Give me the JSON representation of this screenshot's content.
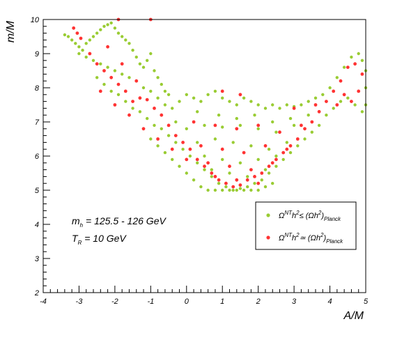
{
  "chart_data": {
    "type": "scatter",
    "xlabel": "A/M",
    "ylabel": "m/M",
    "xlim": [
      -4,
      5
    ],
    "ylim": [
      2,
      10
    ],
    "x_ticks": [
      -4,
      -3,
      -2,
      -1,
      0,
      1,
      2,
      3,
      4,
      5
    ],
    "y_ticks": [
      2,
      3,
      4,
      5,
      6,
      7,
      8,
      9,
      10
    ],
    "grid": false,
    "legend_position": "right-middle",
    "annotations": [
      {
        "id": "mh",
        "base": "m",
        "sub": "h",
        "text": " = 125.5 - 126 GeV"
      },
      {
        "id": "tr",
        "base": "T",
        "sub": "R",
        "text": " = 10 GeV"
      }
    ],
    "series": [
      {
        "id": "green",
        "legend": {
          "a": "Ω",
          "b": "NT",
          "c": "h",
          "d": "2",
          "e": "≤ (Ωh",
          "f": "2",
          "g": ")",
          "h": "Planck"
        },
        "color": "#99cc33",
        "points": [
          [
            -3.4,
            9.55
          ],
          [
            -3.3,
            9.5
          ],
          [
            -3.2,
            9.4
          ],
          [
            -3.1,
            9.3
          ],
          [
            -3.0,
            9.2
          ],
          [
            -2.9,
            9.1
          ],
          [
            -2.8,
            9.3
          ],
          [
            -2.7,
            9.4
          ],
          [
            -2.6,
            9.5
          ],
          [
            -2.5,
            9.6
          ],
          [
            -2.4,
            9.7
          ],
          [
            -2.3,
            9.8
          ],
          [
            -2.2,
            9.85
          ],
          [
            -2.1,
            9.9
          ],
          [
            -2.0,
            9.75
          ],
          [
            -1.9,
            9.6
          ],
          [
            -1.8,
            9.5
          ],
          [
            -1.7,
            9.4
          ],
          [
            -1.6,
            9.3
          ],
          [
            -1.5,
            9.1
          ],
          [
            -1.4,
            8.9
          ],
          [
            -1.3,
            8.7
          ],
          [
            -1.2,
            8.6
          ],
          [
            -1.1,
            8.8
          ],
          [
            -1.0,
            9.0
          ],
          [
            -0.9,
            8.5
          ],
          [
            -0.8,
            8.3
          ],
          [
            -0.7,
            8.1
          ],
          [
            -0.6,
            7.9
          ],
          [
            -0.5,
            7.8
          ],
          [
            -3.0,
            9.0
          ],
          [
            -2.8,
            8.9
          ],
          [
            -2.6,
            8.8
          ],
          [
            -2.4,
            8.7
          ],
          [
            -2.2,
            8.6
          ],
          [
            -2.0,
            8.5
          ],
          [
            -1.8,
            8.4
          ],
          [
            -1.6,
            8.3
          ],
          [
            -1.4,
            8.2
          ],
          [
            -1.2,
            8.0
          ],
          [
            -1.0,
            7.9
          ],
          [
            -0.8,
            7.7
          ],
          [
            -0.6,
            7.5
          ],
          [
            -0.4,
            7.4
          ],
          [
            -0.2,
            7.6
          ],
          [
            0.0,
            7.8
          ],
          [
            0.2,
            7.7
          ],
          [
            0.4,
            7.6
          ],
          [
            0.6,
            7.8
          ],
          [
            0.8,
            7.9
          ],
          [
            1.0,
            7.7
          ],
          [
            1.2,
            7.6
          ],
          [
            1.4,
            7.5
          ],
          [
            1.6,
            7.7
          ],
          [
            1.8,
            7.6
          ],
          [
            2.0,
            7.5
          ],
          [
            2.2,
            7.4
          ],
          [
            2.4,
            7.5
          ],
          [
            2.6,
            7.4
          ],
          [
            2.8,
            7.5
          ],
          [
            3.0,
            7.45
          ],
          [
            3.2,
            7.5
          ],
          [
            3.4,
            7.6
          ],
          [
            3.6,
            7.7
          ],
          [
            3.8,
            7.8
          ],
          [
            4.0,
            8.0
          ],
          [
            4.2,
            8.3
          ],
          [
            4.4,
            8.6
          ],
          [
            4.6,
            8.9
          ],
          [
            4.8,
            9.0
          ],
          [
            4.9,
            8.8
          ],
          [
            5.0,
            8.5
          ],
          [
            5.0,
            8.0
          ],
          [
            5.0,
            7.5
          ],
          [
            4.9,
            7.3
          ],
          [
            4.7,
            7.5
          ],
          [
            4.5,
            7.7
          ],
          [
            4.3,
            7.6
          ],
          [
            4.1,
            7.4
          ],
          [
            3.9,
            7.2
          ],
          [
            -2.5,
            8.3
          ],
          [
            -2.3,
            8.1
          ],
          [
            -2.1,
            7.9
          ],
          [
            -1.9,
            7.8
          ],
          [
            -1.7,
            7.6
          ],
          [
            -1.5,
            7.4
          ],
          [
            -1.3,
            7.3
          ],
          [
            -1.1,
            7.1
          ],
          [
            -0.9,
            6.9
          ],
          [
            -0.7,
            6.8
          ],
          [
            -0.5,
            6.6
          ],
          [
            -0.3,
            6.4
          ],
          [
            -0.1,
            6.2
          ],
          [
            0.1,
            6.0
          ],
          [
            0.3,
            5.8
          ],
          [
            0.5,
            5.6
          ],
          [
            0.7,
            5.4
          ],
          [
            0.9,
            5.2
          ],
          [
            1.1,
            5.1
          ],
          [
            1.3,
            5.0
          ],
          [
            1.5,
            5.05
          ],
          [
            1.7,
            5.1
          ],
          [
            1.9,
            5.2
          ],
          [
            2.1,
            5.3
          ],
          [
            2.3,
            5.5
          ],
          [
            2.5,
            5.7
          ],
          [
            2.7,
            5.9
          ],
          [
            2.9,
            6.1
          ],
          [
            3.1,
            6.3
          ],
          [
            3.3,
            6.5
          ],
          [
            3.5,
            6.7
          ],
          [
            3.7,
            6.9
          ],
          [
            -1.0,
            6.5
          ],
          [
            -0.8,
            6.3
          ],
          [
            -0.6,
            6.1
          ],
          [
            -0.4,
            5.9
          ],
          [
            -0.2,
            5.7
          ],
          [
            0.0,
            5.5
          ],
          [
            0.2,
            5.3
          ],
          [
            0.4,
            5.1
          ],
          [
            0.6,
            5.0
          ],
          [
            0.8,
            5.0
          ],
          [
            1.0,
            5.0
          ],
          [
            1.2,
            5.0
          ],
          [
            1.4,
            5.0
          ],
          [
            1.6,
            5.0
          ],
          [
            1.8,
            5.0
          ],
          [
            2.0,
            5.0
          ],
          [
            2.2,
            5.1
          ],
          [
            2.4,
            5.2
          ],
          [
            0.0,
            6.8
          ],
          [
            0.5,
            6.9
          ],
          [
            1.0,
            6.85
          ],
          [
            1.5,
            6.9
          ],
          [
            2.0,
            6.8
          ],
          [
            2.5,
            6.7
          ],
          [
            3.0,
            6.9
          ],
          [
            0.3,
            6.4
          ],
          [
            0.8,
            6.5
          ],
          [
            1.3,
            6.4
          ],
          [
            1.8,
            6.3
          ],
          [
            2.3,
            6.2
          ],
          [
            2.8,
            6.4
          ],
          [
            0.5,
            6.0
          ],
          [
            1.0,
            5.9
          ],
          [
            1.5,
            5.8
          ],
          [
            2.0,
            5.9
          ],
          [
            2.5,
            6.0
          ],
          [
            0.7,
            5.6
          ],
          [
            1.2,
            5.5
          ],
          [
            1.7,
            5.4
          ],
          [
            2.2,
            5.6
          ],
          [
            -0.3,
            7.0
          ],
          [
            0.3,
            7.3
          ],
          [
            0.9,
            7.2
          ],
          [
            1.4,
            7.1
          ],
          [
            1.9,
            7.2
          ],
          [
            2.4,
            7.0
          ],
          [
            2.9,
            7.1
          ],
          [
            3.4,
            7.2
          ]
        ]
      },
      {
        "id": "red",
        "legend": {
          "a": "Ω",
          "b": "NT",
          "c": "h",
          "d": "2",
          "e": "≃ (Ωh",
          "f": "2",
          "g": ")",
          "h": "Planck"
        },
        "color": "#ff3333",
        "points": [
          [
            -3.15,
            9.75
          ],
          [
            -3.05,
            9.6
          ],
          [
            -2.95,
            9.45
          ],
          [
            -1.9,
            10.0
          ],
          [
            -1.0,
            10.0
          ],
          [
            -2.7,
            9.0
          ],
          [
            -2.5,
            8.7
          ],
          [
            -2.3,
            8.5
          ],
          [
            -2.1,
            8.3
          ],
          [
            -1.9,
            8.1
          ],
          [
            -1.7,
            7.9
          ],
          [
            -1.5,
            7.6
          ],
          [
            -1.3,
            7.7
          ],
          [
            -1.1,
            7.65
          ],
          [
            -0.9,
            7.4
          ],
          [
            -0.7,
            7.2
          ],
          [
            -0.5,
            6.9
          ],
          [
            -0.3,
            6.6
          ],
          [
            -0.1,
            6.4
          ],
          [
            0.1,
            6.2
          ],
          [
            0.3,
            5.9
          ],
          [
            0.5,
            5.7
          ],
          [
            0.7,
            5.5
          ],
          [
            0.9,
            5.3
          ],
          [
            1.1,
            5.2
          ],
          [
            1.3,
            5.1
          ],
          [
            1.5,
            5.15
          ],
          [
            1.7,
            5.3
          ],
          [
            1.9,
            5.4
          ],
          [
            2.1,
            5.5
          ],
          [
            2.3,
            5.7
          ],
          [
            2.5,
            5.9
          ],
          [
            2.7,
            6.1
          ],
          [
            2.9,
            6.3
          ],
          [
            3.1,
            6.5
          ],
          [
            3.3,
            6.8
          ],
          [
            3.5,
            7.0
          ],
          [
            3.7,
            7.3
          ],
          [
            3.9,
            7.6
          ],
          [
            4.1,
            7.9
          ],
          [
            4.3,
            8.2
          ],
          [
            4.5,
            8.6
          ],
          [
            4.7,
            8.7
          ],
          [
            4.9,
            8.4
          ],
          [
            4.8,
            7.9
          ],
          [
            4.6,
            7.6
          ],
          [
            4.4,
            7.8
          ],
          [
            4.2,
            7.5
          ],
          [
            1.0,
            7.9
          ],
          [
            1.5,
            7.8
          ],
          [
            0.2,
            7.0
          ],
          [
            0.8,
            6.9
          ],
          [
            1.4,
            6.8
          ],
          [
            2.0,
            6.9
          ],
          [
            2.6,
            6.7
          ],
          [
            3.2,
            6.9
          ],
          [
            0.4,
            6.3
          ],
          [
            1.0,
            6.2
          ],
          [
            1.6,
            6.1
          ],
          [
            2.2,
            6.3
          ],
          [
            2.8,
            6.2
          ],
          [
            0.6,
            5.8
          ],
          [
            1.2,
            5.7
          ],
          [
            1.8,
            5.6
          ],
          [
            2.4,
            5.8
          ],
          [
            0.8,
            5.4
          ],
          [
            1.4,
            5.3
          ],
          [
            2.0,
            5.2
          ],
          [
            -1.2,
            6.8
          ],
          [
            -0.8,
            6.5
          ],
          [
            -0.4,
            6.2
          ],
          [
            0.0,
            5.9
          ],
          [
            -2.4,
            7.9
          ],
          [
            -2.0,
            7.5
          ],
          [
            -1.6,
            7.2
          ],
          [
            -1.4,
            8.2
          ],
          [
            -1.8,
            8.7
          ],
          [
            -2.2,
            9.2
          ],
          [
            3.0,
            7.4
          ],
          [
            3.6,
            7.5
          ]
        ]
      }
    ]
  }
}
